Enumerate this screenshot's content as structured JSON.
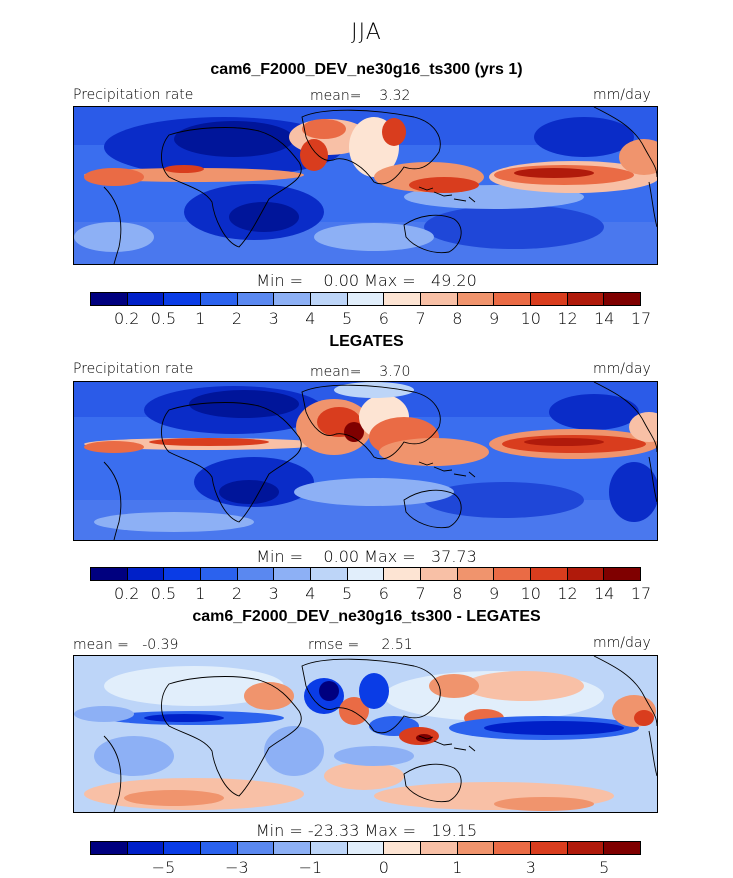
{
  "season": "JJA",
  "panels": [
    {
      "title": "cam6_F2000_DEV_ne30g16_ts300 (yrs 1)",
      "left_label": "Precipitation rate",
      "center_label": "mean=    3.32",
      "right_label": "mm/day",
      "minmax": "Min =    0.00 Max =   49.20",
      "ticks": [
        "0.2",
        "0.5",
        "1",
        "2",
        "3",
        "4",
        "5",
        "6",
        "7",
        "8",
        "9",
        "10",
        "12",
        "14",
        "17"
      ]
    },
    {
      "title": "LEGATES",
      "left_label": "Precipitation rate",
      "center_label": "mean=    3.70",
      "right_label": "mm/day",
      "minmax": "Min =    0.00 Max =   37.73",
      "ticks": [
        "0.2",
        "0.5",
        "1",
        "2",
        "3",
        "4",
        "5",
        "6",
        "7",
        "8",
        "9",
        "10",
        "12",
        "14",
        "17"
      ]
    },
    {
      "title": "cam6_F2000_DEV_ne30g16_ts300 - LEGATES",
      "left_label": "mean =   -0.39",
      "center_label": "rmse =     2.51",
      "right_label": "mm/day",
      "minmax": "Min = -23.33 Max =   19.15",
      "ticks": [
        "−5",
        "−3",
        "−1",
        "0",
        "1",
        "3",
        "5"
      ]
    }
  ],
  "colors": {
    "precip_scale": [
      "#00007f",
      "#0020c8",
      "#0a3ce6",
      "#2b62ee",
      "#5a88f0",
      "#8db0f5",
      "#bdd5f8",
      "#e1eefb",
      "#fde4d3",
      "#f8c0a6",
      "#f0946d",
      "#ea6b45",
      "#d93d1e",
      "#b01a0b",
      "#7f0000"
    ],
    "diff_scale": [
      "#00007f",
      "#0020c8",
      "#0a3ce6",
      "#2b62ee",
      "#5a88f0",
      "#8db0f5",
      "#bdd5f8",
      "#e1eefb",
      "#fde4d3",
      "#f8c0a6",
      "#f0946d",
      "#ea6b45",
      "#d93d1e",
      "#b01a0b",
      "#7f0000"
    ]
  }
}
